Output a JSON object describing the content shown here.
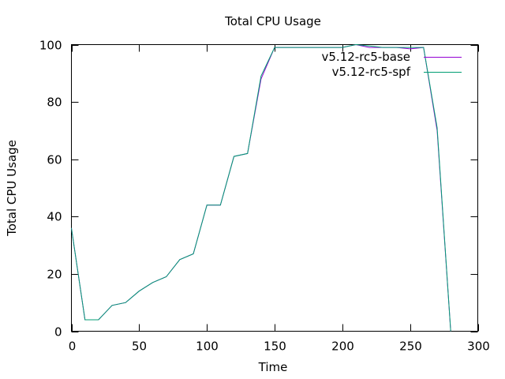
{
  "chart_data": {
    "type": "line",
    "title": "Total CPU Usage",
    "xlabel": "Time",
    "ylabel": "Total CPU Usage",
    "xlim": [
      0,
      300
    ],
    "ylim": [
      0,
      100
    ],
    "xticks": [
      0,
      50,
      100,
      150,
      200,
      250,
      300
    ],
    "yticks": [
      0,
      20,
      40,
      60,
      80,
      100
    ],
    "grid": false,
    "legend_position": "top-right",
    "series": [
      {
        "name": "v5.12-rc5-base",
        "color": "#9400d3",
        "x": [
          0,
          10,
          20,
          30,
          40,
          50,
          60,
          70,
          80,
          90,
          100,
          110,
          120,
          130,
          140,
          150,
          160,
          170,
          180,
          190,
          200,
          210,
          220,
          230,
          240,
          250,
          260,
          270,
          280
        ],
        "y": [
          36,
          4,
          4,
          9,
          10,
          14,
          17,
          19,
          25,
          27,
          44,
          44,
          61,
          62,
          88,
          99,
          99,
          99,
          99,
          99,
          99,
          100,
          99,
          99,
          99,
          98.5,
          99,
          70,
          0
        ]
      },
      {
        "name": "v5.12-rc5-spf",
        "color": "#009e73",
        "x": [
          0,
          10,
          20,
          30,
          40,
          50,
          60,
          70,
          80,
          90,
          100,
          110,
          120,
          130,
          140,
          150,
          160,
          170,
          180,
          190,
          200,
          210,
          220,
          230,
          240,
          250,
          260,
          270,
          280
        ],
        "y": [
          36,
          4,
          4,
          9,
          10,
          14,
          17,
          19,
          25,
          27,
          44,
          44,
          61,
          62,
          89,
          99,
          99,
          99,
          99,
          99,
          99,
          100,
          99.5,
          99,
          99,
          99,
          99,
          71,
          0
        ]
      }
    ]
  }
}
